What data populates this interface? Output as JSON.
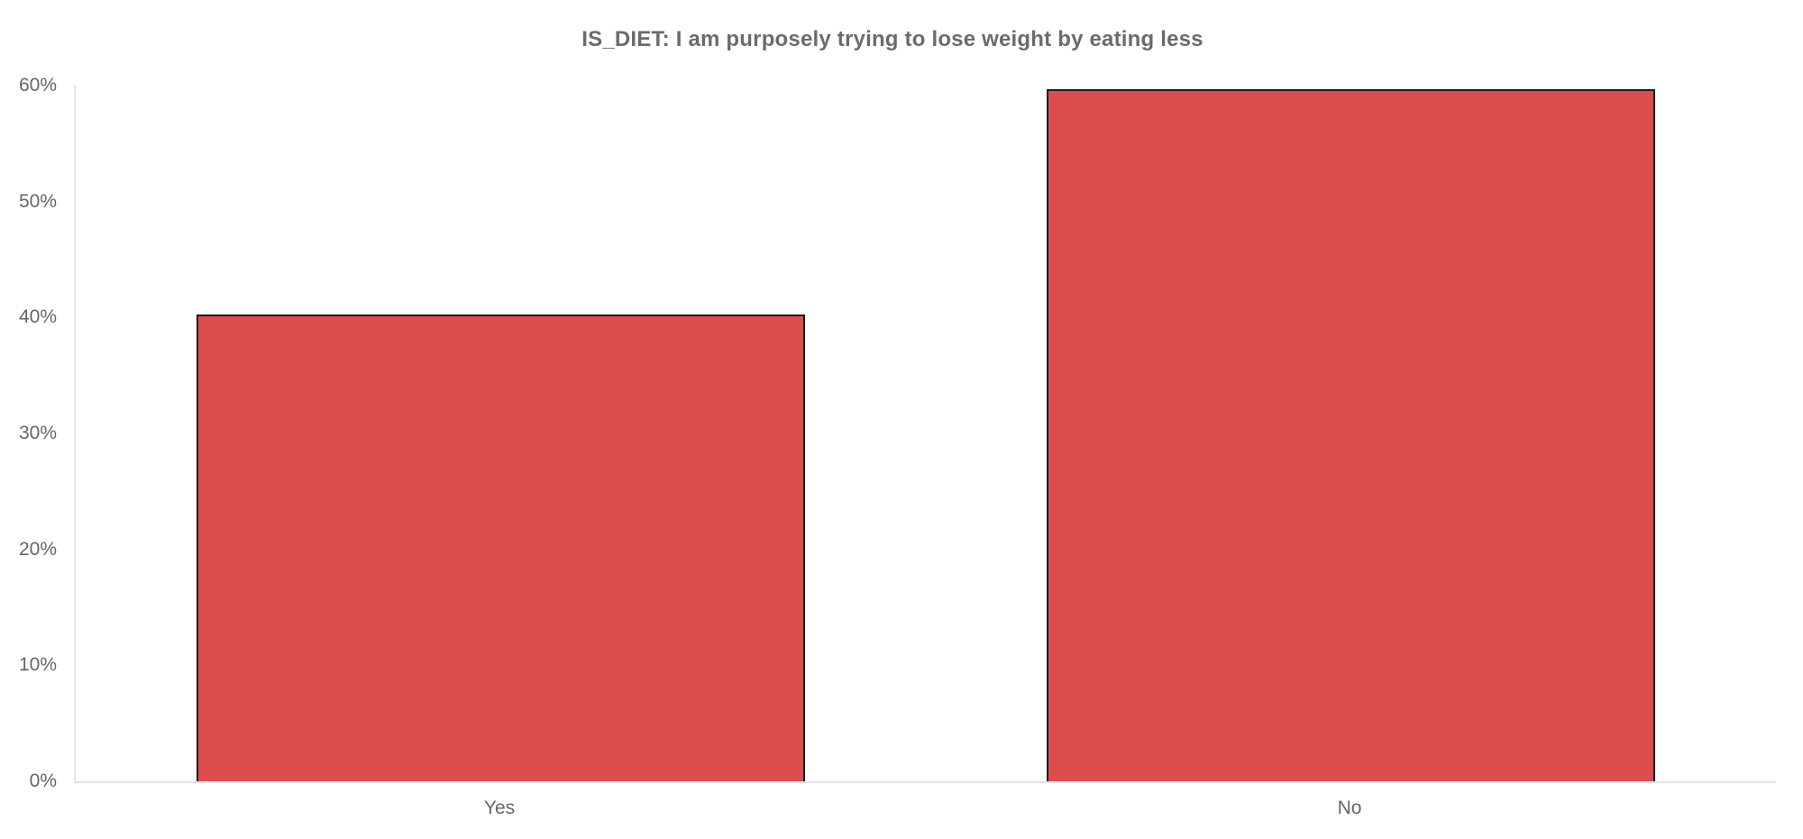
{
  "chart_data": {
    "type": "bar",
    "title": "IS_DIET: I am purposely trying to lose weight by eating less",
    "categories": [
      "Yes",
      "No"
    ],
    "values": [
      40.3,
      59.7
    ],
    "value_unit": "%",
    "xlabel": "",
    "ylabel": "",
    "ylim": [
      0,
      60
    ],
    "yticks": [
      0,
      10,
      20,
      30,
      40,
      50,
      60
    ],
    "ytick_labels": [
      "0%",
      "10%",
      "20%",
      "30%",
      "40%",
      "50%",
      "60%"
    ],
    "grid": false,
    "legend": false,
    "bar_color": "#de4d4d",
    "bar_border_color": "#1a1a1a",
    "axis_line_color": "#e4e4e4",
    "label_color": "#666666",
    "title_color": "#6b6b6b"
  }
}
